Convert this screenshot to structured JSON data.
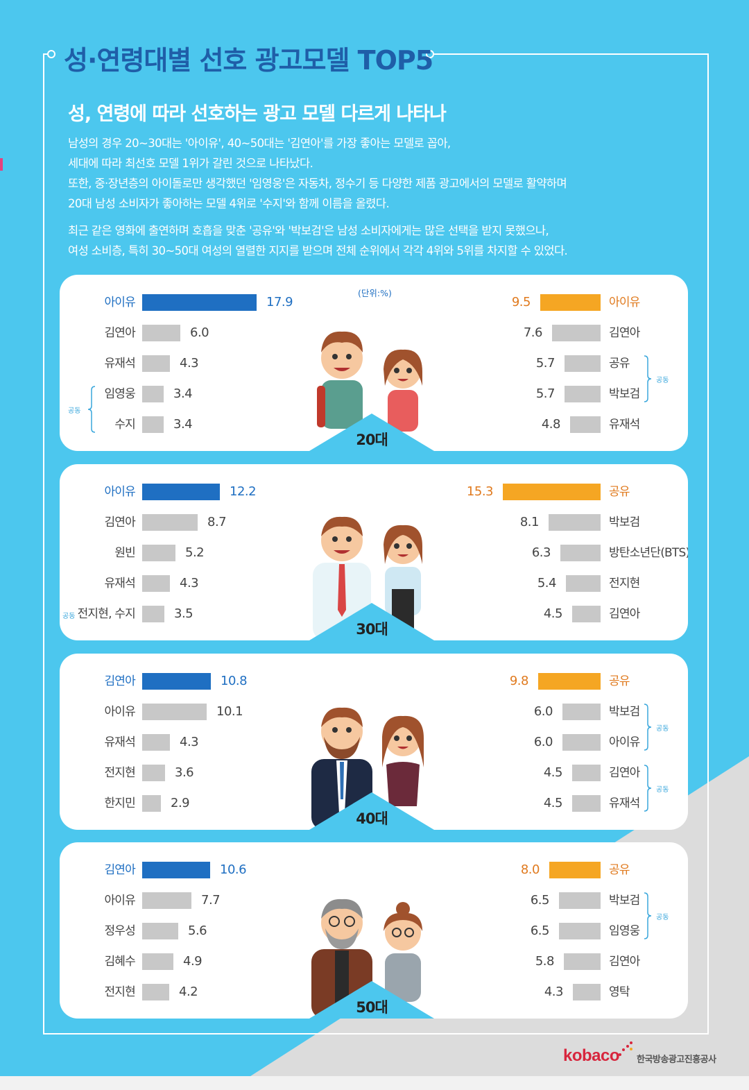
{
  "title": "성·연령대별 선호 광고모델 TOP5",
  "subtitle": "성, 연령에 따라 선호하는 광고 모델 다르게 나타나",
  "paragraph1": [
    "남성의 경우 20~30대는 '아이유', 40~50대는 '김연아'를 가장 좋아는 모델로 꼽아,",
    "세대에 따라 최선호 모델 1위가 갈린 것으로 나타났다.",
    "또한, 중·장년층의 아이돌로만 생각했던 '임영웅'은 자동차, 정수기 등 다양한 제품 광고에서의 모델로 활약하며",
    "20대 남성 소비자가 좋아하는 모델 4위로 '수지'와 함께 이름을 올렸다."
  ],
  "paragraph2": [
    "최근 같은 영화에 출연하며 호흡을 맞춘 '공유'와 '박보검'은 남성 소비자에게는 많은 선택을 받지 못했으나,",
    "여성 소비층, 특히 30~50대 여성의 열렬한 지지를 받으며 전체 순위에서 각각 4위와 5위를 차지할 수 있었다."
  ],
  "unit_label": "(단위:%)",
  "tie_label": "공동",
  "logo": {
    "brand": "kobaco",
    "org": "한국방송광고진흥공사"
  },
  "colors": {
    "male_top": "#1f6fc2",
    "female_top": "#f5a623",
    "other": "#c8c8c8",
    "bg": "#4cc7ee"
  },
  "chart_data": [
    {
      "type": "bar",
      "age_group": "20대",
      "unit": "%",
      "series": [
        {
          "name": "남성",
          "categories": [
            "아이유",
            "김연아",
            "유재석",
            "임영웅",
            "수지"
          ],
          "values": [
            17.9,
            6.0,
            4.3,
            3.4,
            3.4
          ],
          "labels": [
            "17.9",
            "6.0",
            "4.3",
            "3.4",
            "3.4"
          ],
          "ties": [
            [
              3,
              4
            ]
          ]
        },
        {
          "name": "여성",
          "categories": [
            "아이유",
            "김연아",
            "공유",
            "박보검",
            "유재석"
          ],
          "values": [
            9.5,
            7.6,
            5.7,
            5.7,
            4.8
          ],
          "labels": [
            "9.5",
            "7.6",
            "5.7",
            "5.7",
            "4.8"
          ],
          "ties": [
            [
              2,
              3
            ]
          ]
        }
      ]
    },
    {
      "type": "bar",
      "age_group": "30대",
      "unit": "%",
      "series": [
        {
          "name": "남성",
          "categories": [
            "아이유",
            "김연아",
            "원빈",
            "유재석",
            "전지현, 수지"
          ],
          "values": [
            12.2,
            8.7,
            5.2,
            4.3,
            3.5
          ],
          "labels": [
            "12.2",
            "8.7",
            "5.2",
            "4.3",
            "3.5"
          ],
          "ties": [
            [
              4,
              4
            ]
          ]
        },
        {
          "name": "여성",
          "categories": [
            "공유",
            "박보검",
            "방탄소년단(BTS)",
            "전지현",
            "김연아"
          ],
          "values": [
            15.3,
            8.1,
            6.3,
            5.4,
            4.5
          ],
          "labels": [
            "15.3",
            "8.1",
            "6.3",
            "5.4",
            "4.5"
          ],
          "ties": []
        }
      ]
    },
    {
      "type": "bar",
      "age_group": "40대",
      "unit": "%",
      "series": [
        {
          "name": "남성",
          "categories": [
            "김연아",
            "아이유",
            "유재석",
            "전지현",
            "한지민"
          ],
          "values": [
            10.8,
            10.1,
            4.3,
            3.6,
            2.9
          ],
          "labels": [
            "10.8",
            "10.1",
            "4.3",
            "3.6",
            "2.9"
          ],
          "ties": []
        },
        {
          "name": "여성",
          "categories": [
            "공유",
            "박보검",
            "아이유",
            "김연아",
            "유재석"
          ],
          "values": [
            9.8,
            6.0,
            6.0,
            4.5,
            4.5
          ],
          "labels": [
            "9.8",
            "6.0",
            "6.0",
            "4.5",
            "4.5"
          ],
          "ties": [
            [
              1,
              2
            ],
            [
              3,
              4
            ]
          ]
        }
      ]
    },
    {
      "type": "bar",
      "age_group": "50대",
      "unit": "%",
      "series": [
        {
          "name": "남성",
          "categories": [
            "김연아",
            "아이유",
            "정우성",
            "김혜수",
            "전지현"
          ],
          "values": [
            10.6,
            7.7,
            5.6,
            4.9,
            4.2
          ],
          "labels": [
            "10.6",
            "7.7",
            "5.6",
            "4.9",
            "4.2"
          ],
          "ties": []
        },
        {
          "name": "여성",
          "categories": [
            "공유",
            "박보검",
            "임영웅",
            "김연아",
            "영탁"
          ],
          "values": [
            8.0,
            6.5,
            6.5,
            5.8,
            4.3
          ],
          "labels": [
            "8.0",
            "6.5",
            "6.5",
            "5.8",
            "4.3"
          ],
          "ties": [
            [
              1,
              2
            ]
          ]
        }
      ]
    }
  ]
}
